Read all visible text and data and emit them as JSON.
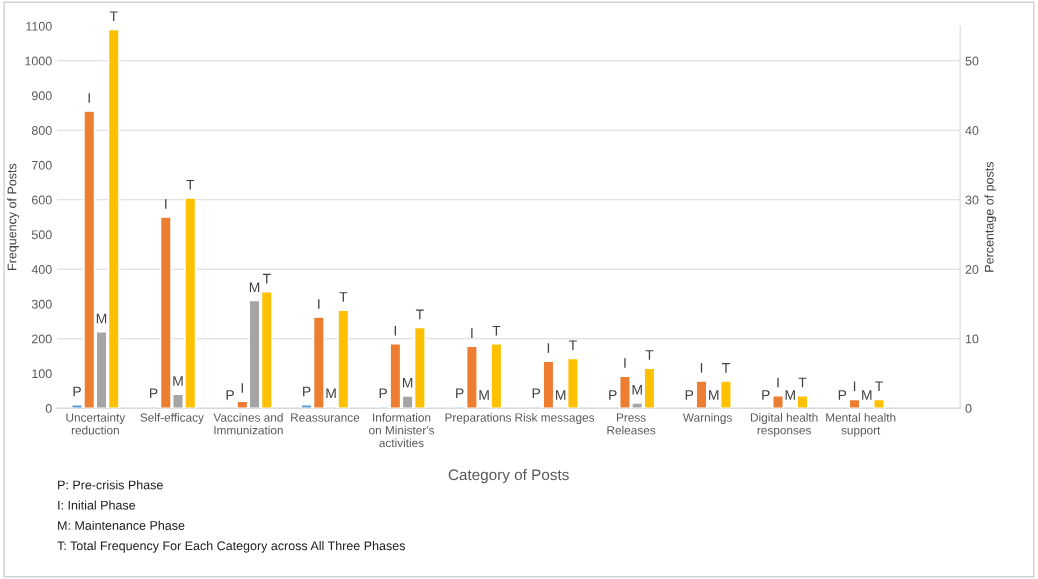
{
  "chart_data": {
    "type": "bar",
    "categories": [
      "Uncertainty\nreduction",
      "Self-efficacy",
      "Vaccines and\nImmunization",
      "Reassurance",
      "Information\non Minister's\nactivities",
      "Preparations",
      "Risk messages",
      "Press\nReleases",
      "Warnings",
      "Digital health\nresponses",
      "Mental health\nsupport"
    ],
    "series": [
      {
        "color": "#5b9bd5",
        "values": [
          10,
          5,
          null,
          10,
          5,
          5,
          5,
          null,
          null,
          null,
          null
        ],
        "value_labels": [
          "P",
          "P",
          "P",
          "P",
          "P",
          "P",
          "P",
          "P",
          "P",
          "P",
          "P"
        ]
      },
      {
        "color": "#ed7d31",
        "values": [
          855,
          550,
          20,
          262,
          185,
          178,
          135,
          92,
          78,
          36,
          25
        ],
        "value_labels": [
          "I",
          "I",
          "I",
          "I",
          "I",
          "I",
          "I",
          "I",
          "I",
          "I",
          "I"
        ]
      },
      {
        "color": "#a5a5a5",
        "values": [
          220,
          40,
          310,
          5,
          35,
          null,
          null,
          15,
          null,
          null,
          null
        ],
        "value_labels": [
          "M",
          "M",
          "M",
          "M",
          "M",
          "M",
          "M",
          "M",
          "M",
          "M",
          "M"
        ]
      },
      {
        "color": "#ffc000",
        "values": [
          1090,
          605,
          335,
          282,
          232,
          185,
          143,
          115,
          78,
          36,
          25
        ],
        "value_labels": [
          "T",
          "T",
          "T",
          "T",
          "T",
          "T",
          "T",
          "T",
          "T",
          "T",
          "T"
        ]
      }
    ],
    "xlabel": "Category of Posts",
    "ylabel": "Frequency of Posts",
    "y2label": "Percentage of posts",
    "ylim": [
      0,
      1100
    ],
    "yticks": [
      0,
      100,
      200,
      300,
      400,
      500,
      600,
      700,
      800,
      900,
      1000,
      1100
    ],
    "y2lim": [
      0,
      55
    ],
    "y2ticks": [
      0,
      10,
      20,
      30,
      40,
      50
    ],
    "grid": "y2",
    "legend": false,
    "annotations": [
      "P: Pre-crisis Phase",
      "I: Initial Phase",
      "M: Maintenance Phase",
      "T: Total Frequency For Each Category across All Three Phases"
    ]
  }
}
